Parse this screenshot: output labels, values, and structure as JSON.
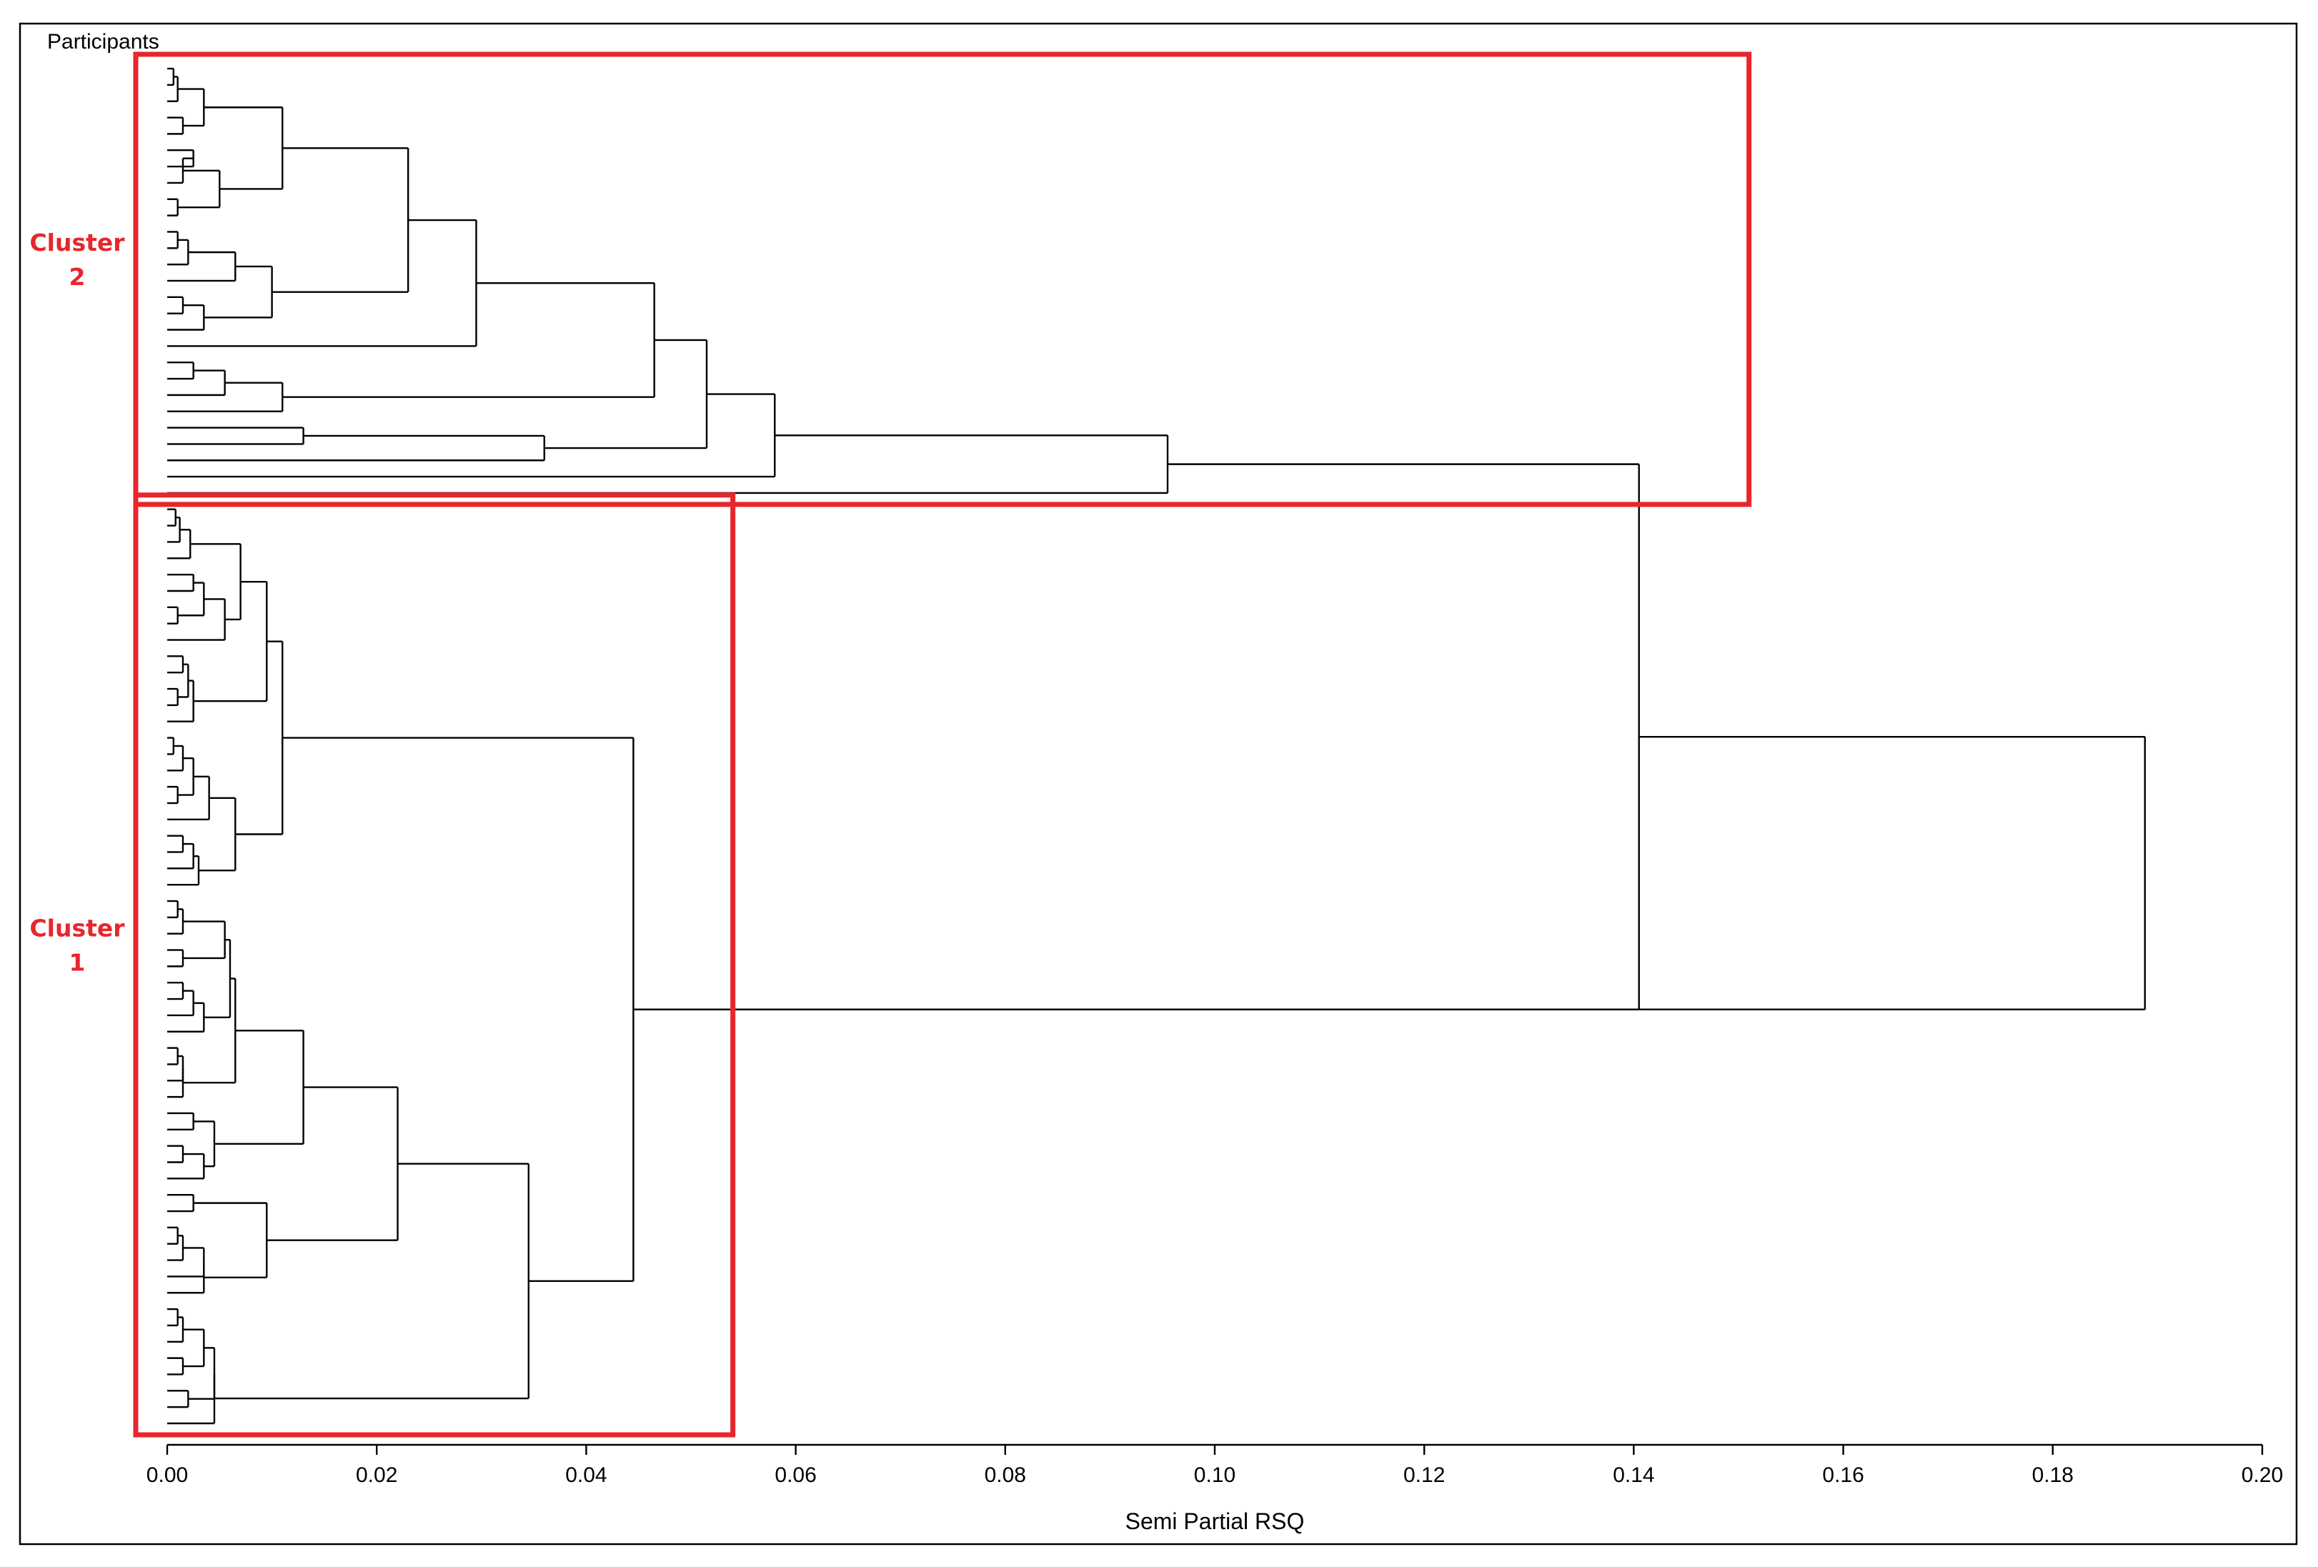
{
  "chart_data": {
    "type": "dendrogram",
    "orientation": "horizontal",
    "title": "",
    "ylabel": "Participants",
    "xlabel": "Semi Partial RSQ",
    "xlim": [
      0,
      0.2
    ],
    "xticks": [
      "0.00",
      "0.02",
      "0.04",
      "0.06",
      "0.08",
      "0.10",
      "0.12",
      "0.14",
      "0.16",
      "0.18",
      "0.20"
    ],
    "leaf_count": 84,
    "clusters": [
      {
        "label_line1": "Cluster",
        "label_line2": "2",
        "color": "#e8262c",
        "leaf_range": [
          1,
          27
        ],
        "height_limit": 0.151
      },
      {
        "label_line1": "Cluster",
        "label_line2": "1",
        "color": "#e8262c",
        "leaf_range": [
          28,
          84
        ],
        "height_limit": 0.054
      }
    ],
    "merges": [
      {
        "a": "L1",
        "b": "L2",
        "h": 0.0006,
        "id": "C1"
      },
      {
        "a": "C1",
        "b": "L3",
        "h": 0.001,
        "id": "C2"
      },
      {
        "a": "L4",
        "b": "L5",
        "h": 0.0015,
        "id": "C3"
      },
      {
        "a": "C2",
        "b": "C3",
        "h": 0.0035,
        "id": "C4"
      },
      {
        "a": "L6",
        "b": "L7",
        "h": 0.0025,
        "id": "C5"
      },
      {
        "a": "C5",
        "b": "L8",
        "h": 0.0015,
        "id": "C6"
      },
      {
        "a": "L9",
        "b": "L10",
        "h": 0.001,
        "id": "C7"
      },
      {
        "a": "C6",
        "b": "C7",
        "h": 0.005,
        "id": "C8"
      },
      {
        "a": "C4",
        "b": "C8",
        "h": 0.011,
        "id": "C9"
      },
      {
        "a": "L11",
        "b": "L12",
        "h": 0.001,
        "id": "C10"
      },
      {
        "a": "C10",
        "b": "L13",
        "h": 0.002,
        "id": "C11"
      },
      {
        "a": "C11",
        "b": "L14",
        "h": 0.0065,
        "id": "C12"
      },
      {
        "a": "L15",
        "b": "L16",
        "h": 0.0015,
        "id": "C13"
      },
      {
        "a": "C13",
        "b": "L17",
        "h": 0.0035,
        "id": "C14"
      },
      {
        "a": "C12",
        "b": "C14",
        "h": 0.01,
        "id": "C15"
      },
      {
        "a": "C9",
        "b": "C15",
        "h": 0.023,
        "id": "C16"
      },
      {
        "a": "C16",
        "b": "L18",
        "h": 0.0295,
        "id": "C17"
      },
      {
        "a": "L19",
        "b": "L20",
        "h": 0.0025,
        "id": "C18"
      },
      {
        "a": "C18",
        "b": "L21",
        "h": 0.0055,
        "id": "C19"
      },
      {
        "a": "C19",
        "b": "L22",
        "h": 0.011,
        "id": "C20"
      },
      {
        "a": "C17",
        "b": "C20",
        "h": 0.0465,
        "id": "C21"
      },
      {
        "a": "L23",
        "b": "L24",
        "h": 0.013,
        "id": "C22"
      },
      {
        "a": "C22",
        "b": "L25",
        "h": 0.036,
        "id": "C23"
      },
      {
        "a": "C21",
        "b": "C23",
        "h": 0.0515,
        "id": "C24"
      },
      {
        "a": "C24",
        "b": "L26",
        "h": 0.058,
        "id": "C25"
      },
      {
        "a": "C25",
        "b": "L27",
        "h": 0.0955,
        "id": "C26"
      },
      {
        "a": "L28",
        "b": "L29",
        "h": 0.0008,
        "id": "C27"
      },
      {
        "a": "C27",
        "b": "L30",
        "h": 0.0012,
        "id": "C28"
      },
      {
        "a": "C28",
        "b": "L31",
        "h": 0.0022,
        "id": "C29"
      },
      {
        "a": "L32",
        "b": "L33",
        "h": 0.0025,
        "id": "C30"
      },
      {
        "a": "L34",
        "b": "L35",
        "h": 0.001,
        "id": "C31"
      },
      {
        "a": "C30",
        "b": "C31",
        "h": 0.0035,
        "id": "C32"
      },
      {
        "a": "C32",
        "b": "L36",
        "h": 0.0055,
        "id": "C33"
      },
      {
        "a": "C29",
        "b": "C33",
        "h": 0.007,
        "id": "C34"
      },
      {
        "a": "L37",
        "b": "L38",
        "h": 0.0015,
        "id": "C35"
      },
      {
        "a": "L39",
        "b": "L40",
        "h": 0.001,
        "id": "C36"
      },
      {
        "a": "C35",
        "b": "C36",
        "h": 0.002,
        "id": "C37"
      },
      {
        "a": "C37",
        "b": "L41",
        "h": 0.0025,
        "id": "C38"
      },
      {
        "a": "C34",
        "b": "C38",
        "h": 0.0095,
        "id": "C39"
      },
      {
        "a": "L42",
        "b": "L43",
        "h": 0.0006,
        "id": "C40"
      },
      {
        "a": "C40",
        "b": "L44",
        "h": 0.0015,
        "id": "C41"
      },
      {
        "a": "L45",
        "b": "L46",
        "h": 0.001,
        "id": "C42"
      },
      {
        "a": "C41",
        "b": "C42",
        "h": 0.0025,
        "id": "C43"
      },
      {
        "a": "C43",
        "b": "L47",
        "h": 0.004,
        "id": "C44"
      },
      {
        "a": "L48",
        "b": "L49",
        "h": 0.0015,
        "id": "C45"
      },
      {
        "a": "C45",
        "b": "L50",
        "h": 0.0025,
        "id": "C46"
      },
      {
        "a": "C46",
        "b": "L51",
        "h": 0.003,
        "id": "C47"
      },
      {
        "a": "C44",
        "b": "C47",
        "h": 0.0065,
        "id": "C48"
      },
      {
        "a": "C39",
        "b": "C48",
        "h": 0.011,
        "id": "C49"
      },
      {
        "a": "L52",
        "b": "L53",
        "h": 0.001,
        "id": "C50"
      },
      {
        "a": "C50",
        "b": "L54",
        "h": 0.0015,
        "id": "C51"
      },
      {
        "a": "L55",
        "b": "L56",
        "h": 0.0015,
        "id": "C52"
      },
      {
        "a": "C51",
        "b": "C52",
        "h": 0.0055,
        "id": "C53"
      },
      {
        "a": "L57",
        "b": "L58",
        "h": 0.0015,
        "id": "C54"
      },
      {
        "a": "C54",
        "b": "L59",
        "h": 0.0025,
        "id": "C55"
      },
      {
        "a": "C55",
        "b": "L60",
        "h": 0.0035,
        "id": "C56"
      },
      {
        "a": "C53",
        "b": "C56",
        "h": 0.006,
        "id": "C57"
      },
      {
        "a": "L61",
        "b": "L62",
        "h": 0.001,
        "id": "C58"
      },
      {
        "a": "C58",
        "b": "L63",
        "h": 0.0015,
        "id": "C59"
      },
      {
        "a": "C59",
        "b": "L64",
        "h": 0.0015,
        "id": "C60"
      },
      {
        "a": "C57",
        "b": "C60",
        "h": 0.0065,
        "id": "C61"
      },
      {
        "a": "L65",
        "b": "L66",
        "h": 0.0025,
        "id": "C62"
      },
      {
        "a": "L67",
        "b": "L68",
        "h": 0.0015,
        "id": "C63"
      },
      {
        "a": "C63",
        "b": "L69",
        "h": 0.0035,
        "id": "C64"
      },
      {
        "a": "C62",
        "b": "C64",
        "h": 0.0045,
        "id": "C65"
      },
      {
        "a": "C61",
        "b": "C65",
        "h": 0.013,
        "id": "C66"
      },
      {
        "a": "L70",
        "b": "L71",
        "h": 0.0025,
        "id": "C67"
      },
      {
        "a": "L72",
        "b": "L73",
        "h": 0.001,
        "id": "C68"
      },
      {
        "a": "C68",
        "b": "L74",
        "h": 0.0015,
        "id": "C69"
      },
      {
        "a": "C69",
        "b": "L75",
        "h": 0.0035,
        "id": "C70"
      },
      {
        "a": "C70",
        "b": "L76",
        "h": 0.0035,
        "id": "C71"
      },
      {
        "a": "C67",
        "b": "C71",
        "h": 0.0095,
        "id": "C72"
      },
      {
        "a": "C66",
        "b": "C72",
        "h": 0.022,
        "id": "C73"
      },
      {
        "a": "L77",
        "b": "L78",
        "h": 0.001,
        "id": "C74"
      },
      {
        "a": "C74",
        "b": "L79",
        "h": 0.0015,
        "id": "C75"
      },
      {
        "a": "L80",
        "b": "L81",
        "h": 0.0015,
        "id": "C76"
      },
      {
        "a": "C75",
        "b": "C76",
        "h": 0.0035,
        "id": "C77"
      },
      {
        "a": "L82",
        "b": "L83",
        "h": 0.002,
        "id": "C78"
      },
      {
        "a": "C77",
        "b": "C78",
        "h": 0.0045,
        "id": "C79"
      },
      {
        "a": "C79",
        "b": "L84",
        "h": 0.0045,
        "id": "C80"
      },
      {
        "a": "C73",
        "b": "C80",
        "h": 0.0345,
        "id": "C81"
      },
      {
        "a": "C49",
        "b": "C81",
        "h": 0.0445,
        "id": "C82"
      },
      {
        "a": "C26",
        "b": "C82",
        "h": 0.1405,
        "id": "C83"
      },
      {
        "a": "C83",
        "b": "C82",
        "h": 0.1888,
        "id": "ROOT_DUMMY"
      }
    ]
  }
}
